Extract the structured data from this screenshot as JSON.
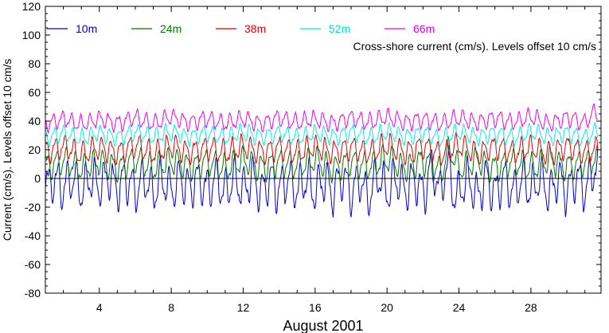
{
  "chart_data": {
    "type": "line",
    "title": "",
    "annotation": "Cross-shore current (cm/s). Levels offset 10 cm/s",
    "xlabel": "August 2001",
    "ylabel": "Current (cm/s). Levels offset 10 cm/s",
    "xlim": [
      1,
      31.9
    ],
    "ylim": [
      -80,
      120
    ],
    "x_ticks": [
      4,
      8,
      12,
      16,
      20,
      24,
      28
    ],
    "y_ticks": [
      -80,
      -60,
      -40,
      -20,
      0,
      20,
      40,
      60,
      80,
      100,
      120
    ],
    "zero_line": 0,
    "grid": false,
    "legend": {
      "placement": "top-left",
      "entries": [
        "10m",
        "24m",
        "38m",
        "52m",
        "66m"
      ]
    },
    "series": [
      {
        "name": "10m",
        "color": "#0000cc",
        "label_color": "#0000cc",
        "offset": 0,
        "amplitude": 13,
        "sampled_points": [
          [
            1.1,
            -8
          ],
          [
            1.5,
            5
          ],
          [
            2.0,
            -10
          ],
          [
            2.5,
            8
          ],
          [
            3.0,
            -16
          ],
          [
            3.5,
            6
          ],
          [
            4.0,
            -8
          ],
          [
            4.5,
            10
          ],
          [
            5.0,
            -12
          ],
          [
            5.5,
            6
          ],
          [
            6.0,
            -14
          ],
          [
            6.5,
            8
          ],
          [
            7.0,
            -18
          ],
          [
            7.5,
            4
          ],
          [
            8.0,
            -16
          ],
          [
            8.5,
            6
          ],
          [
            9.0,
            -12
          ],
          [
            9.5,
            5
          ],
          [
            10.0,
            -14
          ],
          [
            10.5,
            8
          ],
          [
            11.0,
            -18
          ],
          [
            11.5,
            6
          ],
          [
            12.0,
            -14
          ],
          [
            12.5,
            8
          ],
          [
            13.0,
            -20
          ],
          [
            13.5,
            4
          ],
          [
            14.0,
            -16
          ],
          [
            14.5,
            8
          ],
          [
            15.0,
            -14
          ],
          [
            15.5,
            6
          ],
          [
            16.0,
            -18
          ],
          [
            16.5,
            6
          ],
          [
            17.0,
            -20
          ],
          [
            17.5,
            10
          ],
          [
            18.0,
            -22
          ],
          [
            18.5,
            6
          ],
          [
            18.9,
            -30
          ],
          [
            19.5,
            10
          ],
          [
            20.0,
            -20
          ],
          [
            20.5,
            8
          ],
          [
            21.0,
            -18
          ],
          [
            21.5,
            6
          ],
          [
            22.0,
            -20
          ],
          [
            22.5,
            30
          ],
          [
            23.0,
            -22
          ],
          [
            23.3,
            38
          ],
          [
            23.8,
            -28
          ],
          [
            24.5,
            4
          ],
          [
            25.0,
            -26
          ],
          [
            25.5,
            6
          ],
          [
            26.0,
            -22
          ],
          [
            26.5,
            8
          ],
          [
            27.0,
            -18
          ],
          [
            27.5,
            6
          ],
          [
            28.0,
            -16
          ],
          [
            28.5,
            8
          ],
          [
            29.0,
            -22
          ],
          [
            29.5,
            6
          ],
          [
            30.0,
            -18
          ],
          [
            30.5,
            10
          ],
          [
            31.0,
            -14
          ],
          [
            31.5,
            26
          ]
        ]
      },
      {
        "name": "24m",
        "color": "#007700",
        "label_color": "#007700",
        "offset": 10,
        "amplitude": 8,
        "sampled_points": [
          [
            1.1,
            6
          ],
          [
            2.0,
            16
          ],
          [
            3.0,
            2
          ],
          [
            4.0,
            14
          ],
          [
            5.0,
            4
          ],
          [
            6.0,
            18
          ],
          [
            7.0,
            2
          ],
          [
            8.0,
            16
          ],
          [
            9.0,
            6
          ],
          [
            10.0,
            14
          ],
          [
            11.0,
            2
          ],
          [
            12.0,
            16
          ],
          [
            13.0,
            4
          ],
          [
            14.0,
            14
          ],
          [
            15.0,
            6
          ],
          [
            16.0,
            16
          ],
          [
            17.0,
            2
          ],
          [
            18.0,
            14
          ],
          [
            19.0,
            6
          ],
          [
            20.0,
            18
          ],
          [
            21.0,
            4
          ],
          [
            22.0,
            16
          ],
          [
            23.0,
            -2
          ],
          [
            23.5,
            38
          ],
          [
            24.0,
            2
          ],
          [
            25.0,
            16
          ],
          [
            26.0,
            4
          ],
          [
            27.0,
            14
          ],
          [
            28.0,
            2
          ],
          [
            29.0,
            16
          ],
          [
            30.0,
            6
          ],
          [
            31.0,
            12
          ],
          [
            31.7,
            20
          ]
        ]
      },
      {
        "name": "38m",
        "color": "#dd0000",
        "label_color": "#dd0000",
        "offset": 20,
        "amplitude": 7,
        "sampled_points": [
          [
            1.1,
            18
          ],
          [
            2.0,
            26
          ],
          [
            3.0,
            12
          ],
          [
            4.0,
            24
          ],
          [
            5.0,
            16
          ],
          [
            6.0,
            28
          ],
          [
            7.0,
            14
          ],
          [
            8.0,
            26
          ],
          [
            9.0,
            16
          ],
          [
            10.0,
            24
          ],
          [
            11.0,
            14
          ],
          [
            12.0,
            26
          ],
          [
            13.0,
            16
          ],
          [
            14.0,
            24
          ],
          [
            15.0,
            14
          ],
          [
            16.0,
            26
          ],
          [
            17.0,
            16
          ],
          [
            18.0,
            24
          ],
          [
            19.0,
            14
          ],
          [
            20.0,
            28
          ],
          [
            21.0,
            16
          ],
          [
            22.0,
            26
          ],
          [
            23.0,
            12
          ],
          [
            24.0,
            28
          ],
          [
            25.0,
            14
          ],
          [
            26.0,
            26
          ],
          [
            27.0,
            16
          ],
          [
            28.0,
            24
          ],
          [
            29.0,
            14
          ],
          [
            30.0,
            26
          ],
          [
            31.0,
            16
          ],
          [
            31.7,
            22
          ]
        ]
      },
      {
        "name": "52m",
        "color": "#00eeee",
        "label_color": "#00dddd",
        "offset": 30,
        "amplitude": 5,
        "sampled_points": [
          [
            1.1,
            26
          ],
          [
            2.0,
            34
          ],
          [
            3.0,
            24
          ],
          [
            4.0,
            34
          ],
          [
            5.0,
            26
          ],
          [
            6.0,
            36
          ],
          [
            7.0,
            28
          ],
          [
            8.0,
            36
          ],
          [
            9.0,
            28
          ],
          [
            10.0,
            34
          ],
          [
            11.0,
            26
          ],
          [
            12.0,
            36
          ],
          [
            13.0,
            28
          ],
          [
            14.0,
            34
          ],
          [
            15.0,
            26
          ],
          [
            16.0,
            34
          ],
          [
            17.0,
            28
          ],
          [
            18.0,
            36
          ],
          [
            19.0,
            26
          ],
          [
            20.0,
            36
          ],
          [
            21.0,
            28
          ],
          [
            22.0,
            34
          ],
          [
            23.0,
            24
          ],
          [
            24.0,
            36
          ],
          [
            25.0,
            28
          ],
          [
            26.0,
            34
          ],
          [
            27.0,
            26
          ],
          [
            28.0,
            36
          ],
          [
            29.0,
            28
          ],
          [
            30.0,
            34
          ],
          [
            31.0,
            26
          ],
          [
            31.7,
            38
          ]
        ]
      },
      {
        "name": "66m",
        "color": "#ee00ee",
        "label_color": "#dd00dd",
        "offset": 40,
        "amplitude": 5,
        "sampled_points": [
          [
            1.1,
            36
          ],
          [
            2.0,
            44
          ],
          [
            3.0,
            34
          ],
          [
            4.0,
            44
          ],
          [
            5.0,
            36
          ],
          [
            6.0,
            46
          ],
          [
            7.0,
            36
          ],
          [
            8.0,
            48
          ],
          [
            9.0,
            38
          ],
          [
            10.0,
            44
          ],
          [
            11.0,
            36
          ],
          [
            12.0,
            44
          ],
          [
            13.0,
            36
          ],
          [
            14.0,
            46
          ],
          [
            15.0,
            38
          ],
          [
            16.0,
            44
          ],
          [
            17.0,
            36
          ],
          [
            18.0,
            46
          ],
          [
            19.0,
            38
          ],
          [
            20.0,
            48
          ],
          [
            21.0,
            38
          ],
          [
            22.0,
            44
          ],
          [
            23.0,
            36
          ],
          [
            24.0,
            46
          ],
          [
            25.0,
            38
          ],
          [
            26.0,
            46
          ],
          [
            27.0,
            38
          ],
          [
            28.0,
            48
          ],
          [
            29.0,
            36
          ],
          [
            30.0,
            46
          ],
          [
            31.0,
            38
          ],
          [
            31.5,
            56
          ]
        ]
      }
    ]
  }
}
